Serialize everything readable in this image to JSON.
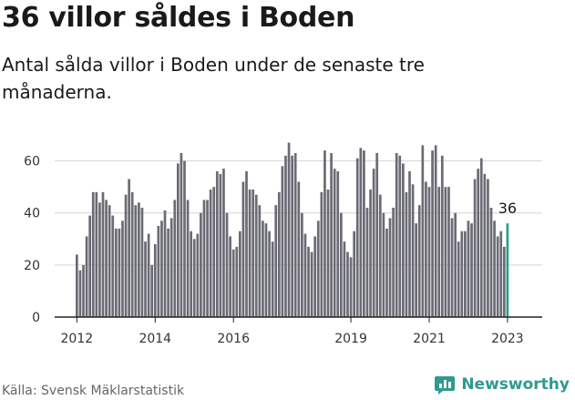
{
  "header": {
    "title": "36 villor såldes i Boden",
    "subtitle": "Antal sålda villor i Boden under de senaste tre månaderna."
  },
  "footer": {
    "source": "Källa: Svensk Mäklarstatistik",
    "brand": "Newsworthy"
  },
  "colors": {
    "bar": "#6b6b75",
    "highlight": "#2a9d8f",
    "grid": "#d4d4d4",
    "brand": "#2f9a8f"
  },
  "chart_data": {
    "type": "bar",
    "title": "36 villor såldes i Boden",
    "subtitle": "Antal sålda villor i Boden under de senaste tre månaderna.",
    "x_start": "2012-01",
    "x_end": "2023-04",
    "frequency": "monthly (rolling 3-month total)",
    "ylim": [
      0,
      70
    ],
    "y_ticks": [
      0,
      20,
      40,
      60
    ],
    "x_tick_labels": [
      "2012",
      "2014",
      "2016",
      "2019",
      "2021",
      "2023"
    ],
    "x_tick_dates": [
      "2012-01",
      "2014-01",
      "2016-01",
      "2019-01",
      "2021-01",
      "2023-01"
    ],
    "grid": "horizontal",
    "highlight_last": true,
    "annotation": {
      "label": "36",
      "value": 36
    },
    "values": [
      24,
      18,
      20,
      31,
      39,
      48,
      48,
      44,
      48,
      45,
      43,
      39,
      34,
      34,
      37,
      47,
      53,
      48,
      43,
      44,
      42,
      29,
      32,
      20,
      28,
      35,
      37,
      41,
      34,
      38,
      45,
      59,
      63,
      60,
      45,
      33,
      30,
      32,
      40,
      45,
      45,
      49,
      50,
      56,
      55,
      57,
      40,
      31,
      26,
      27,
      33,
      52,
      56,
      49,
      49,
      47,
      43,
      37,
      36,
      33,
      29,
      43,
      48,
      58,
      62,
      67,
      62,
      63,
      52,
      40,
      32,
      27,
      25,
      31,
      37,
      48,
      64,
      49,
      63,
      57,
      56,
      40,
      29,
      25,
      23,
      33,
      61,
      65,
      64,
      42,
      49,
      57,
      63,
      47,
      40,
      34,
      38,
      42,
      63,
      62,
      59,
      48,
      56,
      51,
      36,
      43,
      66,
      52,
      50,
      64,
      66,
      50,
      62,
      50,
      50,
      38,
      40,
      29,
      33,
      33,
      37,
      36,
      53,
      57,
      61,
      55,
      53,
      42,
      37,
      31,
      33,
      27,
      36
    ]
  }
}
